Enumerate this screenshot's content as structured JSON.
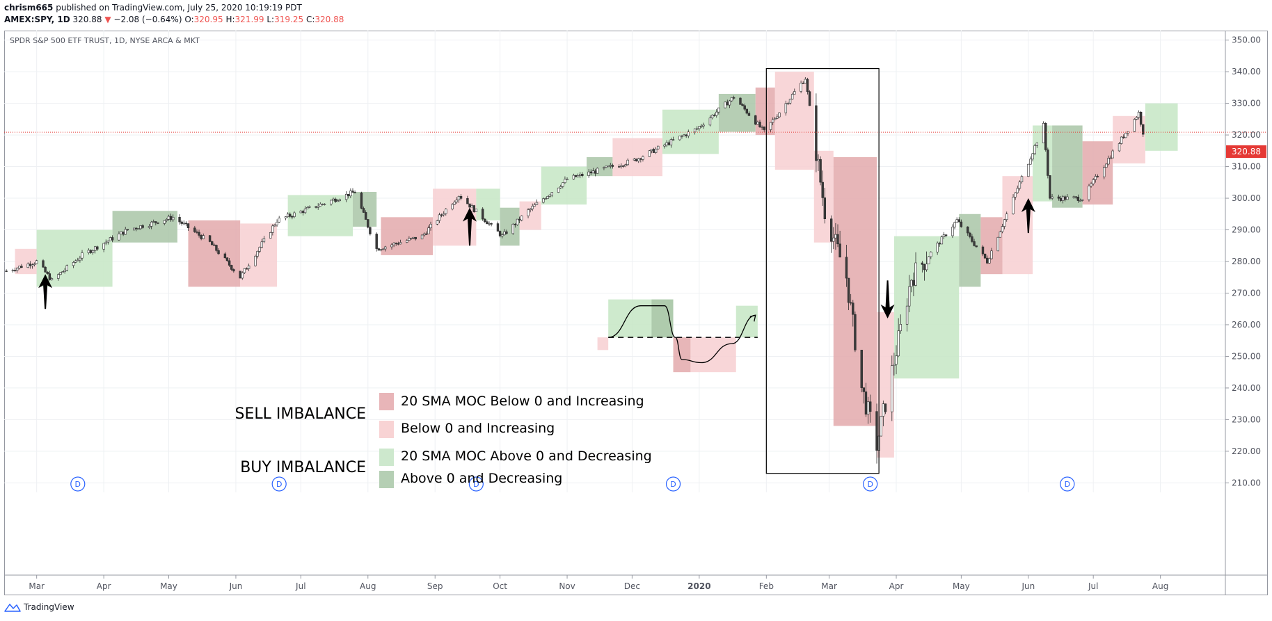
{
  "header": {
    "author": "chrism665",
    "published_text": "published on TradingView.com, July 25, 2020 10:19:19 PDT",
    "symbol": "AMEX:SPY, 1D",
    "last": "320.88",
    "change_arrow": "▼",
    "change": "−2.08 (−0.64%)",
    "o_label": "O:",
    "o_value": "320.95",
    "h_label": "H:",
    "h_value": "321.99",
    "l_label": "L:",
    "l_value": "319.25",
    "c_label": "C:",
    "c_value": "320.88"
  },
  "chart_title": "SPDR S&P 500 ETF TRUST, 1D, NYSE ARCA & MKT",
  "price_label": "320.88",
  "brand": "TradingView",
  "legend": {
    "sell_label": "SELL IMBALANCE",
    "buy_label": "BUY IMBALANCE",
    "items": [
      {
        "text": "20 SMA MOC Below 0 and Increasing",
        "color": "#e8b5b8"
      },
      {
        "text": "Below 0 and Increasing",
        "color": "#f8d3d4"
      },
      {
        "text": "20 SMA MOC Above 0 and Decreasing",
        "color": "#cde8cd"
      },
      {
        "text": "Above 0 and Decreasing",
        "color": "#b5cfb4"
      }
    ]
  },
  "colors": {
    "strong_sell": "#e3a9ac",
    "weak_sell": "#f7cfd1",
    "strong_buy": "#c6e6c4",
    "weak_buy": "#a9c6a7",
    "last_price": "#e53935",
    "dividend_marker": "#2962ff"
  },
  "dividend_marker_label": "D",
  "chart_data": {
    "type": "candlestick",
    "title": "SPDR S&P 500 ETF TRUST, 1D, NYSE ARCA & MKT",
    "x_tick_labels": [
      "Mar",
      "Apr",
      "May",
      "Jun",
      "Jul",
      "Aug",
      "Sep",
      "Oct",
      "Nov",
      "Dec",
      "2020",
      "Feb",
      "Mar",
      "Apr",
      "May",
      "Jun",
      "Jul",
      "Aug"
    ],
    "x_ticks": [
      "2019-03-01",
      "2019-04-01",
      "2019-05-01",
      "2019-06-01",
      "2019-07-01",
      "2019-08-01",
      "2019-09-01",
      "2019-10-01",
      "2019-11-01",
      "2019-12-01",
      "2020-01-01",
      "2020-02-01",
      "2020-03-01",
      "2020-04-01",
      "2020-05-01",
      "2020-06-01",
      "2020-07-01",
      "2020-08-01"
    ],
    "y_ticks": [
      210,
      220,
      230,
      240,
      250,
      260,
      270,
      280,
      290,
      300,
      310,
      320,
      330,
      340,
      350
    ],
    "ylim": [
      207,
      353
    ],
    "last_price": 320.88,
    "price_path": [
      [
        "2019-02-15",
        277
      ],
      [
        "2019-03-01",
        280
      ],
      [
        "2019-03-08",
        274
      ],
      [
        "2019-03-22",
        282
      ],
      [
        "2019-04-12",
        290
      ],
      [
        "2019-05-03",
        294
      ],
      [
        "2019-05-20",
        286
      ],
      [
        "2019-06-03",
        275
      ],
      [
        "2019-06-20",
        293
      ],
      [
        "2019-07-10",
        298
      ],
      [
        "2019-07-26",
        302
      ],
      [
        "2019-08-05",
        284
      ],
      [
        "2019-08-26",
        288
      ],
      [
        "2019-09-12",
        301
      ],
      [
        "2019-10-02",
        288
      ],
      [
        "2019-10-14",
        296
      ],
      [
        "2019-11-01",
        306
      ],
      [
        "2019-12-02",
        312
      ],
      [
        "2019-12-31",
        322
      ],
      [
        "2020-01-17",
        332
      ],
      [
        "2020-01-31",
        321
      ],
      [
        "2020-02-19",
        338
      ],
      [
        "2020-02-28",
        296
      ],
      [
        "2020-03-09",
        275
      ],
      [
        "2020-03-16",
        240
      ],
      [
        "2020-03-23",
        222
      ],
      [
        "2020-04-08",
        275
      ],
      [
        "2020-04-29",
        293
      ],
      [
        "2020-05-13",
        280
      ],
      [
        "2020-06-08",
        323
      ],
      [
        "2020-06-11",
        300
      ],
      [
        "2020-06-26",
        300
      ],
      [
        "2020-07-22",
        327
      ],
      [
        "2020-07-24",
        320.88
      ]
    ],
    "imbalance_boxes": [
      {
        "type": "weak_sell",
        "start": "2019-02-19",
        "end": "2019-03-01",
        "low": 276,
        "high": 284
      },
      {
        "type": "strong_buy",
        "start": "2019-03-01",
        "end": "2019-04-05",
        "low": 272,
        "high": 290
      },
      {
        "type": "weak_buy",
        "start": "2019-04-05",
        "end": "2019-05-05",
        "low": 286,
        "high": 296
      },
      {
        "type": "strong_sell",
        "start": "2019-05-10",
        "end": "2019-06-03",
        "low": 272,
        "high": 293
      },
      {
        "type": "weak_sell",
        "start": "2019-06-03",
        "end": "2019-06-20",
        "low": 272,
        "high": 292
      },
      {
        "type": "strong_buy",
        "start": "2019-06-25",
        "end": "2019-07-25",
        "low": 288,
        "high": 301
      },
      {
        "type": "weak_buy",
        "start": "2019-07-25",
        "end": "2019-08-05",
        "low": 291,
        "high": 302
      },
      {
        "type": "strong_sell",
        "start": "2019-08-07",
        "end": "2019-08-31",
        "low": 282,
        "high": 294
      },
      {
        "type": "weak_sell",
        "start": "2019-08-31",
        "end": "2019-09-20",
        "low": 285,
        "high": 303
      },
      {
        "type": "strong_buy",
        "start": "2019-09-20",
        "end": "2019-10-01",
        "low": 293,
        "high": 303
      },
      {
        "type": "weak_buy",
        "start": "2019-10-01",
        "end": "2019-10-10",
        "low": 285,
        "high": 297
      },
      {
        "type": "weak_sell",
        "start": "2019-10-10",
        "end": "2019-10-20",
        "low": 290,
        "high": 299
      },
      {
        "type": "strong_buy",
        "start": "2019-10-20",
        "end": "2019-11-10",
        "low": 298,
        "high": 310
      },
      {
        "type": "weak_buy",
        "start": "2019-11-10",
        "end": "2019-11-22",
        "low": 307,
        "high": 313
      },
      {
        "type": "weak_sell",
        "start": "2019-11-22",
        "end": "2019-12-15",
        "low": 307,
        "high": 319
      },
      {
        "type": "strong_buy",
        "start": "2019-12-15",
        "end": "2020-01-10",
        "low": 314,
        "high": 328
      },
      {
        "type": "weak_buy",
        "start": "2020-01-10",
        "end": "2020-01-27",
        "low": 321,
        "high": 333
      },
      {
        "type": "strong_sell",
        "start": "2020-01-27",
        "end": "2020-02-05",
        "low": 320,
        "high": 335
      },
      {
        "type": "weak_sell",
        "start": "2020-02-05",
        "end": "2020-02-23",
        "low": 309,
        "high": 340
      },
      {
        "type": "weak_sell",
        "start": "2020-02-23",
        "end": "2020-03-03",
        "low": 286,
        "high": 315
      },
      {
        "type": "strong_sell",
        "start": "2020-03-03",
        "end": "2020-03-23",
        "low": 228,
        "high": 313
      },
      {
        "type": "weak_sell",
        "start": "2020-03-23",
        "end": "2020-03-31",
        "low": 218,
        "high": 264
      },
      {
        "type": "strong_buy",
        "start": "2020-03-31",
        "end": "2020-04-30",
        "low": 243,
        "high": 288
      },
      {
        "type": "weak_buy",
        "start": "2020-04-30",
        "end": "2020-05-10",
        "low": 272,
        "high": 295
      },
      {
        "type": "strong_sell",
        "start": "2020-05-10",
        "end": "2020-05-20",
        "low": 276,
        "high": 294
      },
      {
        "type": "weak_sell",
        "start": "2020-05-20",
        "end": "2020-06-03",
        "low": 276,
        "high": 307
      },
      {
        "type": "strong_buy",
        "start": "2020-06-03",
        "end": "2020-06-12",
        "low": 299,
        "high": 323
      },
      {
        "type": "weak_buy",
        "start": "2020-06-12",
        "end": "2020-06-26",
        "low": 297,
        "high": 323
      },
      {
        "type": "strong_sell",
        "start": "2020-06-26",
        "end": "2020-07-10",
        "low": 298,
        "high": 318
      },
      {
        "type": "weak_sell",
        "start": "2020-07-10",
        "end": "2020-07-25",
        "low": 311,
        "high": 326
      },
      {
        "type": "strong_buy",
        "start": "2020-07-25",
        "end": "2020-08-09",
        "low": 315,
        "high": 330
      }
    ],
    "dividend_markers": [
      "2019-03-20",
      "2019-06-21",
      "2019-09-20",
      "2019-12-20",
      "2020-03-20",
      "2020-06-19"
    ],
    "highlight_rect": {
      "start": "2020-02-01",
      "end": "2020-03-24",
      "low": 213,
      "high": 341
    },
    "arrows": [
      {
        "date": "2019-03-05",
        "direction": "up",
        "tip": 276,
        "tail": 265
      },
      {
        "date": "2019-09-17",
        "direction": "up",
        "tip": 297,
        "tail": 285
      },
      {
        "date": "2020-03-28",
        "direction": "down",
        "tip": 262,
        "tail": 274
      },
      {
        "date": "2020-06-01",
        "direction": "up",
        "tip": 300,
        "tail": 289
      }
    ],
    "example_boxes": [
      {
        "type": "strong_buy",
        "start": "2019-11-20",
        "end": "2019-12-20",
        "low": 256,
        "high": 268
      },
      {
        "type": "weak_buy",
        "start": "2019-12-10",
        "end": "2019-12-20",
        "low": 256,
        "high": 268
      },
      {
        "type": "weak_sell",
        "start": "2019-11-15",
        "end": "2019-11-20",
        "low": 252,
        "high": 256
      },
      {
        "type": "strong_sell",
        "start": "2019-12-20",
        "end": "2019-12-28",
        "low": 245,
        "high": 256
      },
      {
        "type": "weak_sell",
        "start": "2019-12-28",
        "end": "2020-01-18",
        "low": 245,
        "high": 256
      },
      {
        "type": "strong_buy",
        "start": "2020-01-18",
        "end": "2020-01-28",
        "low": 256,
        "high": 266
      }
    ],
    "example_dashed_line": {
      "start": "2019-11-20",
      "end": "2020-01-28",
      "value": 256
    },
    "example_curve": [
      [
        "2019-11-20",
        256
      ],
      [
        "2019-12-05",
        266
      ],
      [
        "2019-12-16",
        266
      ],
      [
        "2019-12-21",
        256
      ],
      [
        "2019-12-24",
        249
      ],
      [
        "2020-01-02",
        248
      ],
      [
        "2020-01-16",
        254
      ],
      [
        "2020-01-27",
        263
      ]
    ]
  }
}
